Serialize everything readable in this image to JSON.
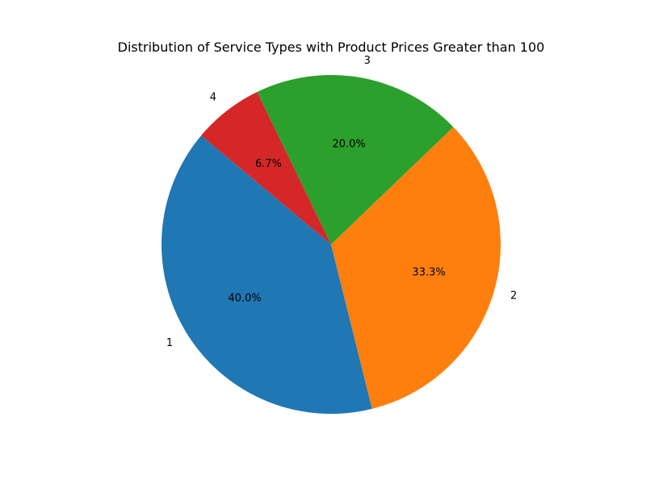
{
  "chart_data": {
    "type": "pie",
    "title": "Distribution of Service Types with Product Prices Greater than 100",
    "labels": [
      "1",
      "2",
      "3",
      "4"
    ],
    "values": [
      40.0,
      33.3,
      20.0,
      6.7
    ],
    "percent_labels": [
      "40.0%",
      "33.3%",
      "20.0%",
      "6.7%"
    ],
    "colors": [
      "#1f77b4",
      "#ff7f0e",
      "#2ca02c",
      "#d62728"
    ],
    "start_angle_deg": 140,
    "counterclock": true,
    "legend": "none",
    "grid": false
  }
}
